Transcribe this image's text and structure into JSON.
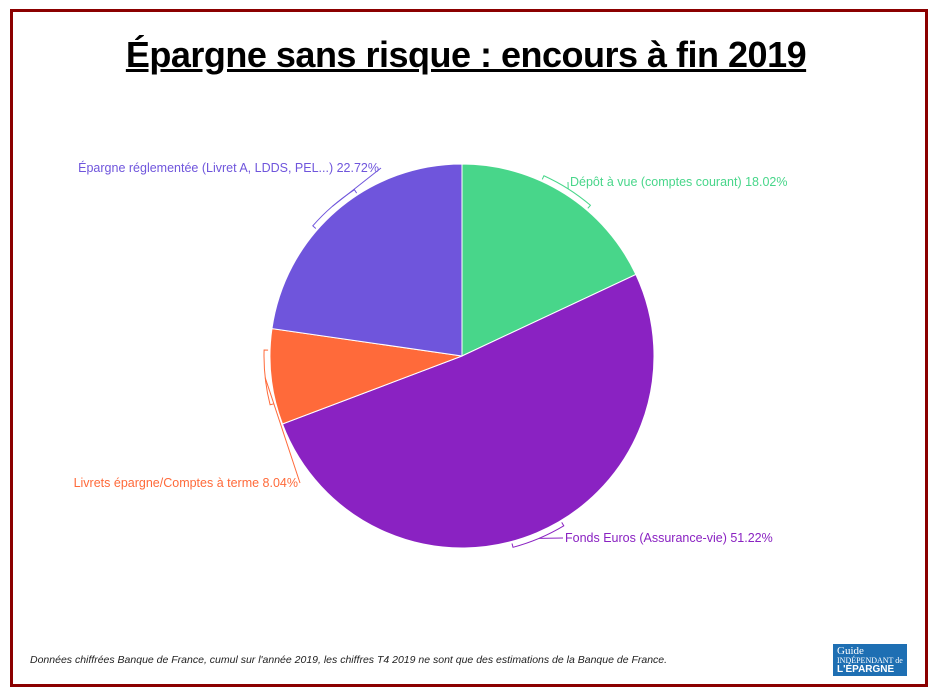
{
  "title": "Épargne sans risque : encours à fin 2019",
  "footer_note": "Données chiffrées Banque de France, cumul sur l'année 2019, les chiffres T4 2019 ne sont que des estimations de la Banque de France.",
  "logo": {
    "line1": "Guide",
    "line2": "INDÉPENDANT de",
    "line3": "L'ÉPARGNE"
  },
  "chart_data": {
    "type": "pie",
    "title": "Épargne sans risque : encours à fin 2019",
    "start_angle_deg": 0,
    "direction": "clockwise",
    "slices": [
      {
        "label": "Dépôt à vue (comptes courant) 18.02%",
        "value": 18.02,
        "color": "#48d68a"
      },
      {
        "label": "Fonds Euros (Assurance-vie) 51.22%",
        "value": 51.22,
        "color": "#8a22c2"
      },
      {
        "label": "Livrets épargne/Comptes à terme 8.04%",
        "value": 8.04,
        "color": "#ff6a3a"
      },
      {
        "label": "Épargne réglementée (Livret A, LDDS, PEL...) 22.72%",
        "value": 22.72,
        "color": "#6f55dc"
      }
    ]
  }
}
